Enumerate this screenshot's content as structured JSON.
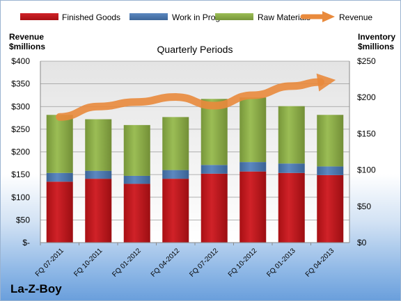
{
  "chart_data": {
    "type": "bar",
    "title": "Quarterly Periods",
    "company": "La-Z-Boy",
    "categories": [
      "FQ 07-2011",
      "FQ 10-2011",
      "FQ 01-2012",
      "FQ 04-2012",
      "FQ 07-2012",
      "FQ 10-2012",
      "FQ 01-2013",
      "FQ 04-2013"
    ],
    "left_axis": {
      "label_line1": "Revenue",
      "label_line2": "$millions",
      "ylim": [
        0,
        400
      ],
      "ticks": [
        0,
        50,
        100,
        150,
        200,
        250,
        300,
        350,
        400
      ],
      "tick_labels": [
        "$-",
        "$50",
        "$100",
        "$150",
        "$200",
        "$250",
        "$300",
        "$350",
        "$400"
      ]
    },
    "right_axis": {
      "label_line1": "Inventory",
      "label_line2": "$millions",
      "ylim": [
        0,
        250
      ],
      "ticks": [
        0,
        50,
        100,
        150,
        200,
        250
      ],
      "tick_labels": [
        "$0",
        "$50",
        "$100",
        "$150",
        "$200",
        "$250"
      ]
    },
    "stacked_series": [
      {
        "name": "Finished Goods",
        "color": "#c0161c",
        "values": [
          84,
          88,
          81,
          88,
          95,
          98,
          96,
          93
        ]
      },
      {
        "name": "Work in Progress",
        "color": "#4f7ab3",
        "values": [
          12,
          11,
          11,
          12,
          12,
          13,
          13,
          12
        ]
      },
      {
        "name": "Raw Materials",
        "color": "#8aab45",
        "values": [
          80,
          71,
          70,
          73,
          91,
          89,
          79,
          71
        ]
      }
    ],
    "line_series": {
      "name": "Revenue",
      "color": "#e98a3c",
      "values": [
        277,
        300,
        310,
        321,
        302,
        325,
        345,
        357
      ]
    },
    "legend_position": "top",
    "grid": true
  }
}
